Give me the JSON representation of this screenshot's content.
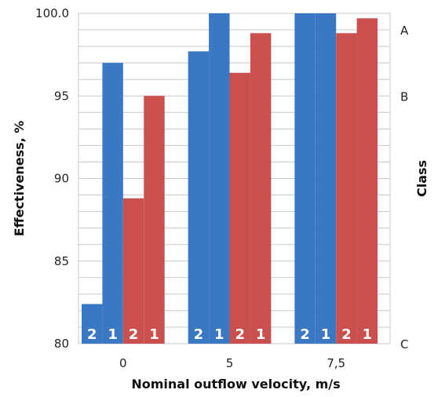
{
  "chart_data": {
    "type": "bar",
    "categories": [
      "0",
      "5",
      "7,5"
    ],
    "bar_labels": [
      "2",
      "1",
      "2",
      "1"
    ],
    "series": [
      {
        "values": [
          82.4,
          97.7,
          100.0
        ],
        "color": "#3a78c4"
      },
      {
        "values": [
          97.0,
          100.0,
          100.0
        ],
        "color": "#3a78c4"
      },
      {
        "values": [
          88.8,
          96.4,
          98.8
        ],
        "color": "#c9504d"
      },
      {
        "values": [
          95.0,
          98.8,
          99.7
        ],
        "color": "#c9504d"
      }
    ],
    "xlabel": "Nominal outflow velocity, m/s",
    "ylabel": "Effectiveness, %",
    "y2label": "Class",
    "ylim": [
      80,
      100
    ],
    "yticks": [
      "80",
      "85",
      "90",
      "95",
      "100.0"
    ],
    "class_ticks": [
      {
        "label": "A",
        "value": 99.0
      },
      {
        "label": "B",
        "value": 95.0
      },
      {
        "label": "C",
        "value": 80.0
      }
    ],
    "grid": true
  }
}
